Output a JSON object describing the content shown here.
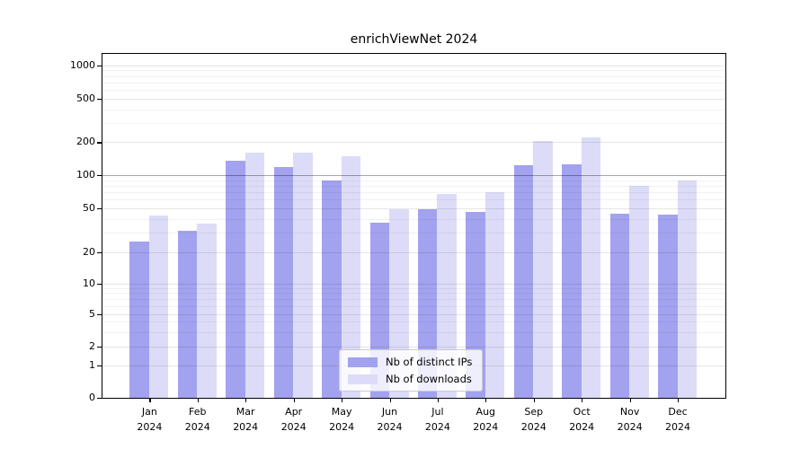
{
  "chart_data": {
    "type": "bar",
    "title": "enrichViewNet 2024",
    "categories": [
      "Jan 2024",
      "Feb 2024",
      "Mar 2024",
      "Apr 2024",
      "May 2024",
      "Jun 2024",
      "Jul 2024",
      "Aug 2024",
      "Sep 2024",
      "Oct 2024",
      "Nov 2024",
      "Dec 2024"
    ],
    "series": [
      {
        "name": "Nb of distinct IPs",
        "color": "#a2a2ef",
        "values": [
          25,
          31,
          137,
          119,
          90,
          37,
          49,
          46,
          123,
          125,
          45,
          44
        ]
      },
      {
        "name": "Nb of downloads",
        "color": "#dcdcf8",
        "values": [
          43,
          36,
          161,
          161,
          150,
          49,
          68,
          70,
          205,
          222,
          80,
          90
        ]
      }
    ],
    "xlabel": "",
    "ylabel": "",
    "yscale": "symlog",
    "y_ticks": [
      0,
      1,
      2,
      5,
      10,
      20,
      50,
      100,
      200,
      500,
      1000
    ],
    "y_minor_gridlines": [
      3,
      4,
      6,
      7,
      8,
      9,
      30,
      40,
      60,
      70,
      80,
      90,
      300,
      400,
      600,
      700,
      800,
      900
    ],
    "reference_line_value": 100,
    "ylim": [
      0,
      1400
    ],
    "grid": true,
    "legend_position": "lower center"
  },
  "colors": {
    "bar_dark": "#a2a2ef",
    "bar_light": "#dcdcf8",
    "reference_line": "#a8a8a8",
    "grid_major": "#e3e3e3",
    "grid_minor": "#f0f0f0",
    "spine": "#000000",
    "background": "#ffffff",
    "text": "#000000"
  }
}
